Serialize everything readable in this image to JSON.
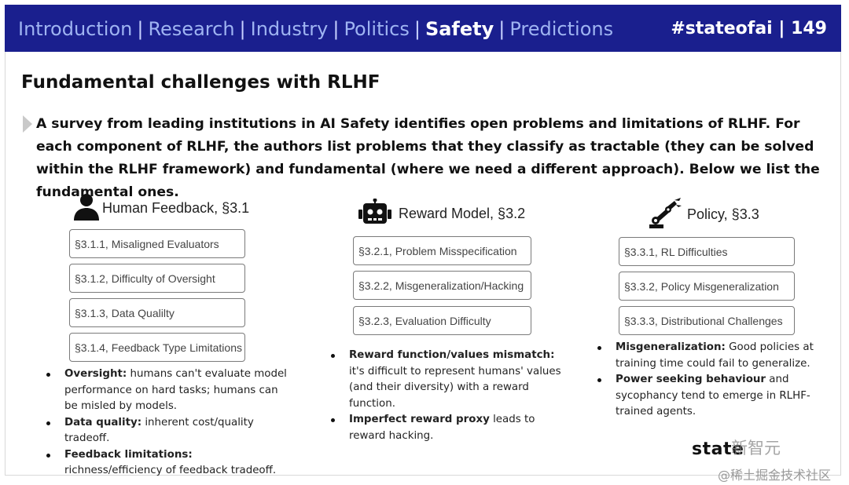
{
  "nav": {
    "items": [
      "Introduction",
      "Research",
      "Industry",
      "Politics",
      "Safety",
      "Predictions"
    ],
    "active_index": 4
  },
  "tagline": "#stateofai | 149",
  "title": "Fundamental challenges with RLHF",
  "intro": "A survey from leading institutions in AI Safety identifies open problems and limitations of RLHF. For each component of RLHF, the authors list problems that they classify as tractable (they can be solved within the RLHF framework) and fundamental (where we need a different approach). Below we list the fundamental ones.",
  "columns": [
    {
      "icon": "person-icon",
      "title": "Human Feedback, §3.1",
      "boxes": [
        "§3.1.1, Misaligned Evaluators",
        "§3.1.2, Difficulty of Oversight",
        "§3.1.3, Data Qualilty",
        "§3.1.4, Feedback Type Limitations"
      ],
      "bullets": [
        {
          "bold": "Oversight:",
          "text": " humans can't evaluate model performance on hard tasks; humans can be misled by models."
        },
        {
          "bold": "Data quality:",
          "text": " inherent cost/quality tradeoff."
        },
        {
          "bold": "Feedback limitations:",
          "text": " richness/efficiency of feedback tradeoff."
        }
      ]
    },
    {
      "icon": "robot-icon",
      "title": "Reward Model, §3.2",
      "boxes": [
        "§3.2.1, Problem Misspecification",
        "§3.2.2, Misgeneralization/Hacking",
        "§3.2.3, Evaluation Difficulty"
      ],
      "bullets": [
        {
          "bold": "Reward function/values mismatch:",
          "text": " it's difficult to represent humans' values (and their diversity) with a reward function."
        },
        {
          "bold": "Imperfect reward proxy",
          "text": " leads to reward hacking."
        }
      ]
    },
    {
      "icon": "robot-arm-icon",
      "title": "Policy, §3.3",
      "boxes": [
        "§3.3.1, RL Difficulties",
        "§3.3.2, Policy Misgeneralization",
        "§3.3.3, Distributional Challenges"
      ],
      "bullets": [
        {
          "bold": "Misgeneralization:",
          "text": " Good policies at training time could fail to generalize."
        },
        {
          "bold": "Power seeking behaviour",
          "text": " and sycophancy tend to emerge in RLHF-trained agents."
        }
      ]
    }
  ],
  "brand": "state",
  "watermark": "新智元",
  "watermark2": "@稀土掘金技术社区",
  "colors": {
    "header_bg": "#1a1f8e",
    "nav_inactive": "#9fb4f2",
    "nav_active": "#ffffff"
  }
}
